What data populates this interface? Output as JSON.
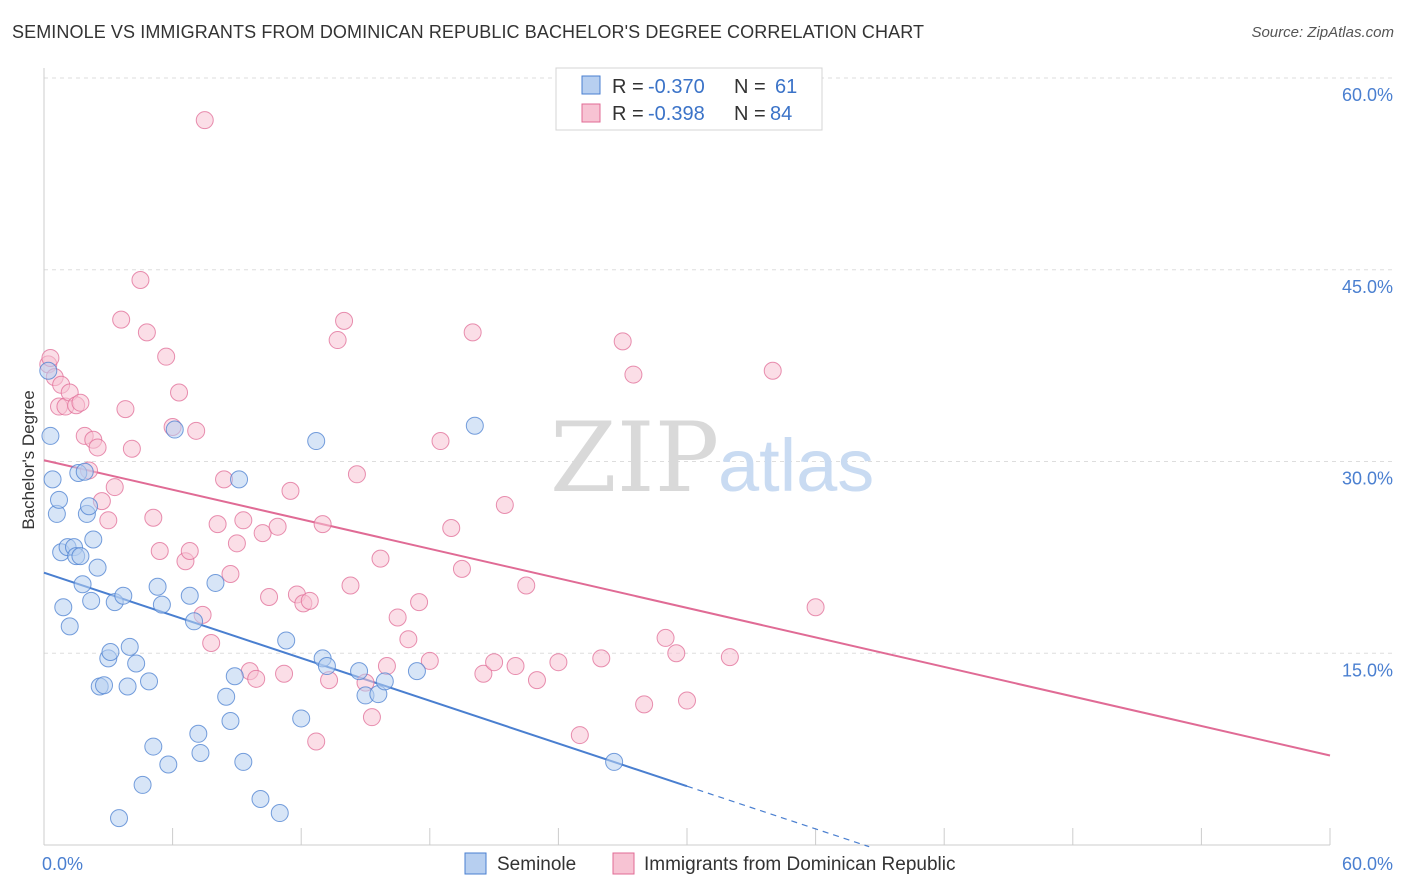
{
  "chart_data": {
    "type": "scatter",
    "title": "SEMINOLE VS IMMIGRANTS FROM DOMINICAN REPUBLIC BACHELOR'S DEGREE CORRELATION CHART",
    "source": "Source: ZipAtlas.com",
    "watermark": {
      "zip": "ZIP",
      "atlas": "atlas"
    },
    "xlabel": "",
    "ylabel": "Bachelor's Degree",
    "xlim": [
      0,
      60
    ],
    "ylim": [
      0,
      60
    ],
    "x_tick_labels": [
      {
        "value": 0,
        "label": "0.0%"
      },
      {
        "value": 60,
        "label": "60.0%"
      }
    ],
    "x_minor_ticks": [
      6,
      12,
      18,
      24,
      30,
      36,
      42,
      48,
      54
    ],
    "y_ticks": [
      {
        "value": 15,
        "label": "15.0%"
      },
      {
        "value": 30,
        "label": "30.0%"
      },
      {
        "value": 45,
        "label": "45.0%"
      },
      {
        "value": 60,
        "label": "60.0%"
      }
    ],
    "grid": true,
    "legend": {
      "position": "top-center",
      "entries": [
        {
          "series": "Seminole",
          "r_label": "R =",
          "r_value": "-0.370",
          "n_label": "N =",
          "n_value": "61"
        },
        {
          "series": "Immigrants from Dominican Republic",
          "r_label": "R =",
          "r_value": "-0.398",
          "n_label": "N =",
          "n_value": "84"
        }
      ]
    },
    "series": [
      {
        "name": "Seminole",
        "color": "#4a7fd0",
        "fill": "#b7cff0",
        "trend": {
          "x0": 0,
          "y0": 21.3,
          "x1": 30,
          "y1": 4.6,
          "dash_to_x": 38.5
        },
        "points": [
          [
            0.2,
            37.1
          ],
          [
            0.3,
            32.0
          ],
          [
            0.4,
            28.6
          ],
          [
            0.6,
            25.9
          ],
          [
            0.7,
            27.0
          ],
          [
            0.8,
            22.9
          ],
          [
            0.9,
            18.6
          ],
          [
            1.1,
            23.3
          ],
          [
            1.2,
            17.1
          ],
          [
            1.4,
            23.3
          ],
          [
            1.5,
            22.6
          ],
          [
            1.6,
            29.1
          ],
          [
            1.7,
            22.6
          ],
          [
            1.8,
            20.4
          ],
          [
            1.9,
            29.2
          ],
          [
            2.0,
            25.9
          ],
          [
            2.1,
            26.5
          ],
          [
            2.2,
            19.1
          ],
          [
            2.3,
            23.9
          ],
          [
            2.5,
            21.7
          ],
          [
            2.6,
            12.4
          ],
          [
            2.8,
            12.5
          ],
          [
            3.0,
            14.6
          ],
          [
            3.1,
            15.1
          ],
          [
            3.3,
            19.0
          ],
          [
            3.5,
            2.1
          ],
          [
            3.7,
            19.5
          ],
          [
            3.9,
            12.4
          ],
          [
            4.0,
            15.5
          ],
          [
            4.3,
            14.2
          ],
          [
            4.6,
            4.7
          ],
          [
            4.9,
            12.8
          ],
          [
            5.1,
            7.7
          ],
          [
            5.3,
            20.2
          ],
          [
            5.5,
            18.8
          ],
          [
            5.8,
            6.3
          ],
          [
            6.1,
            32.5
          ],
          [
            6.8,
            19.5
          ],
          [
            7.0,
            17.5
          ],
          [
            7.2,
            8.7
          ],
          [
            7.3,
            7.2
          ],
          [
            8.0,
            20.5
          ],
          [
            8.5,
            11.6
          ],
          [
            8.7,
            9.7
          ],
          [
            8.9,
            13.2
          ],
          [
            9.1,
            28.6
          ],
          [
            9.3,
            6.5
          ],
          [
            10.1,
            3.6
          ],
          [
            11.0,
            2.5
          ],
          [
            11.3,
            16.0
          ],
          [
            12.0,
            9.9
          ],
          [
            12.7,
            31.6
          ],
          [
            13.0,
            14.6
          ],
          [
            13.2,
            14.0
          ],
          [
            14.7,
            13.6
          ],
          [
            15.0,
            11.7
          ],
          [
            15.6,
            11.8
          ],
          [
            15.9,
            12.8
          ],
          [
            17.4,
            13.6
          ],
          [
            20.1,
            32.8
          ],
          [
            26.6,
            6.5
          ]
        ]
      },
      {
        "name": "Immigrants from Dominican Republic",
        "color": "#e06b95",
        "fill": "#f7c3d3",
        "trend": {
          "x0": 0,
          "y0": 30.1,
          "x1": 60,
          "y1": 7.0
        },
        "points": [
          [
            0.2,
            37.6
          ],
          [
            0.3,
            38.1
          ],
          [
            0.5,
            36.6
          ],
          [
            0.7,
            34.3
          ],
          [
            0.8,
            36.0
          ],
          [
            1.0,
            34.3
          ],
          [
            1.2,
            35.4
          ],
          [
            1.5,
            34.4
          ],
          [
            1.7,
            34.6
          ],
          [
            1.9,
            32.0
          ],
          [
            2.1,
            29.3
          ],
          [
            2.3,
            31.7
          ],
          [
            2.5,
            31.1
          ],
          [
            2.7,
            26.9
          ],
          [
            3.0,
            25.4
          ],
          [
            3.3,
            28.0
          ],
          [
            3.6,
            41.1
          ],
          [
            3.8,
            34.1
          ],
          [
            4.1,
            31.0
          ],
          [
            4.5,
            44.2
          ],
          [
            4.8,
            40.1
          ],
          [
            5.1,
            25.6
          ],
          [
            5.4,
            23.0
          ],
          [
            5.7,
            38.2
          ],
          [
            6.0,
            32.7
          ],
          [
            6.3,
            35.4
          ],
          [
            6.6,
            22.2
          ],
          [
            6.8,
            23.0
          ],
          [
            7.1,
            32.4
          ],
          [
            7.4,
            18.0
          ],
          [
            7.5,
            56.7
          ],
          [
            7.8,
            15.8
          ],
          [
            8.1,
            25.1
          ],
          [
            8.4,
            28.6
          ],
          [
            8.7,
            21.2
          ],
          [
            9.0,
            23.6
          ],
          [
            9.3,
            25.4
          ],
          [
            9.6,
            13.6
          ],
          [
            9.9,
            13.0
          ],
          [
            10.2,
            24.4
          ],
          [
            10.5,
            19.4
          ],
          [
            10.9,
            24.9
          ],
          [
            11.2,
            13.4
          ],
          [
            11.5,
            27.7
          ],
          [
            11.8,
            19.6
          ],
          [
            12.1,
            18.9
          ],
          [
            12.4,
            19.1
          ],
          [
            12.7,
            8.1
          ],
          [
            13.0,
            25.1
          ],
          [
            13.3,
            12.9
          ],
          [
            13.7,
            39.5
          ],
          [
            14.0,
            41.0
          ],
          [
            14.3,
            20.3
          ],
          [
            14.6,
            29.0
          ],
          [
            15.0,
            12.7
          ],
          [
            15.3,
            10.0
          ],
          [
            15.7,
            22.4
          ],
          [
            16.0,
            14.0
          ],
          [
            16.5,
            17.8
          ],
          [
            17.0,
            16.1
          ],
          [
            17.5,
            19.0
          ],
          [
            18.0,
            14.4
          ],
          [
            18.5,
            31.6
          ],
          [
            19.0,
            24.8
          ],
          [
            19.5,
            21.6
          ],
          [
            20.0,
            40.1
          ],
          [
            20.5,
            13.4
          ],
          [
            21.0,
            14.3
          ],
          [
            21.5,
            26.6
          ],
          [
            22.0,
            14.0
          ],
          [
            22.5,
            20.3
          ],
          [
            23.0,
            12.9
          ],
          [
            24.0,
            14.3
          ],
          [
            25.0,
            8.6
          ],
          [
            26.0,
            14.6
          ],
          [
            27.0,
            39.4
          ],
          [
            27.5,
            36.8
          ],
          [
            28.0,
            11.0
          ],
          [
            29.0,
            16.2
          ],
          [
            29.5,
            15.0
          ],
          [
            30.0,
            11.3
          ],
          [
            32.0,
            14.7
          ],
          [
            34.0,
            37.1
          ],
          [
            36.0,
            18.6
          ]
        ]
      }
    ],
    "bottom_legend": [
      {
        "series": "Seminole",
        "label": "Seminole"
      },
      {
        "series": "Immigrants from Dominican Republic",
        "label": "Immigrants from Dominican Republic"
      }
    ]
  }
}
